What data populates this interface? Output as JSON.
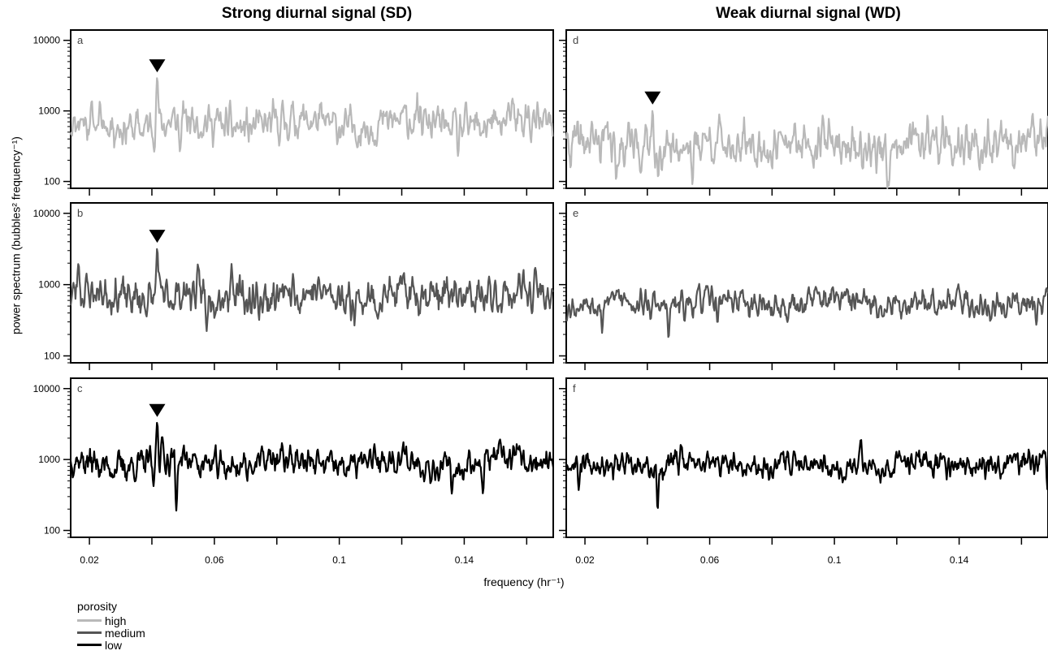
{
  "column_titles": {
    "sd": "Strong diurnal signal (SD)",
    "wd": "Weak diurnal signal (WD)"
  },
  "ylabel": "power spectrum (bubbles² frequency⁻¹)",
  "xlabel": "frequency (hr⁻¹)",
  "legend": {
    "title": "porosity",
    "items": [
      {
        "label": "high",
        "color": "#b9b9b9"
      },
      {
        "label": "medium",
        "color": "#555555"
      },
      {
        "label": "low",
        "color": "#000000"
      }
    ]
  },
  "chart_data": [
    {
      "type": "line",
      "panel_label": "a",
      "column": "sd",
      "porosity": "high",
      "scale": "log",
      "xlim": [
        0.014,
        0.1685
      ],
      "ylim": [
        80,
        14000
      ],
      "yticks": [
        100,
        1000,
        10000
      ],
      "ytick_labels": [
        "100",
        "1000",
        "10000"
      ],
      "xticks": [
        0.02,
        0.06,
        0.1,
        0.14
      ],
      "xtick_labels": [
        "0.02",
        "0.06",
        "0.1",
        "0.14"
      ],
      "baseline": 650,
      "noise_log": 0.17,
      "seed": 11,
      "peaks": [
        [
          0.0417,
          3000
        ]
      ],
      "dips": [
        [
          0.138,
          230
        ],
        [
          0.049,
          260
        ]
      ],
      "marker_x": 0.0417,
      "color": "#b9b9b9"
    },
    {
      "type": "line",
      "panel_label": "b",
      "column": "sd",
      "porosity": "medium",
      "scale": "log",
      "xlim": [
        0.014,
        0.1685
      ],
      "ylim": [
        80,
        14000
      ],
      "yticks": [
        100,
        1000,
        10000
      ],
      "ytick_labels": [
        "100",
        "1000",
        "10000"
      ],
      "xticks": [
        0.02,
        0.06,
        0.1,
        0.14
      ],
      "xtick_labels": [
        "0.02",
        "0.06",
        "0.1",
        "0.14"
      ],
      "baseline": 700,
      "noise_log": 0.17,
      "seed": 23,
      "peaks": [
        [
          0.0417,
          3300
        ],
        [
          0.0165,
          2000
        ],
        [
          0.0655,
          1950
        ]
      ],
      "dips": [
        [
          0.0575,
          220
        ]
      ],
      "marker_x": 0.0417,
      "color": "#555555"
    },
    {
      "type": "line",
      "panel_label": "c",
      "column": "sd",
      "porosity": "low",
      "scale": "log",
      "xlim": [
        0.014,
        0.1685
      ],
      "ylim": [
        80,
        14000
      ],
      "yticks": [
        100,
        1000,
        10000
      ],
      "ytick_labels": [
        "100",
        "1000",
        "10000"
      ],
      "xticks": [
        0.02,
        0.06,
        0.1,
        0.14
      ],
      "xtick_labels": [
        "0.02",
        "0.06",
        "0.1",
        "0.14"
      ],
      "baseline": 900,
      "noise_log": 0.13,
      "seed": 37,
      "peaks": [
        [
          0.0417,
          3400
        ],
        [
          0.0433,
          2100
        ]
      ],
      "dips": [
        [
          0.0478,
          190
        ],
        [
          0.0405,
          420
        ],
        [
          0.136,
          330
        ],
        [
          0.146,
          330
        ]
      ],
      "marker_x": 0.0417,
      "color": "#000000"
    },
    {
      "type": "line",
      "panel_label": "d",
      "column": "wd",
      "porosity": "high",
      "scale": "log",
      "xlim": [
        0.014,
        0.1685
      ],
      "ylim": [
        80,
        14000
      ],
      "yticks": [
        100,
        1000,
        10000
      ],
      "ytick_labels": [
        "100",
        "1000",
        "10000"
      ],
      "xticks": [
        0.02,
        0.06,
        0.1,
        0.14
      ],
      "xtick_labels": [
        "0.02",
        "0.06",
        "0.1",
        "0.14"
      ],
      "baseline": 330,
      "noise_log": 0.19,
      "seed": 41,
      "peaks": [
        [
          0.0417,
          1050
        ],
        [
          0.034,
          700
        ]
      ],
      "dips": [
        [
          0.03,
          100
        ],
        [
          0.0435,
          110
        ],
        [
          0.0545,
          90
        ],
        [
          0.117,
          75
        ],
        [
          0.1175,
          85
        ]
      ],
      "marker_x": 0.0417,
      "color": "#b9b9b9"
    },
    {
      "type": "line",
      "panel_label": "e",
      "column": "wd",
      "porosity": "medium",
      "scale": "log",
      "xlim": [
        0.014,
        0.1685
      ],
      "ylim": [
        80,
        14000
      ],
      "yticks": [
        100,
        1000,
        10000
      ],
      "ytick_labels": [
        "100",
        "1000",
        "10000"
      ],
      "xticks": [
        0.02,
        0.06,
        0.1,
        0.14
      ],
      "xtick_labels": [
        "0.02",
        "0.06",
        "0.1",
        "0.14"
      ],
      "baseline": 560,
      "noise_log": 0.12,
      "seed": 53,
      "peaks": [],
      "dips": [
        [
          0.0255,
          210
        ],
        [
          0.0468,
          175
        ],
        [
          0.0625,
          290
        ],
        [
          0.1648,
          270
        ]
      ],
      "color": "#555555"
    },
    {
      "type": "line",
      "panel_label": "f",
      "column": "wd",
      "porosity": "low",
      "scale": "log",
      "xlim": [
        0.014,
        0.1685
      ],
      "ylim": [
        80,
        14000
      ],
      "yticks": [
        100,
        1000,
        10000
      ],
      "ytick_labels": [
        "100",
        "1000",
        "10000"
      ],
      "xticks": [
        0.02,
        0.06,
        0.1,
        0.14
      ],
      "xtick_labels": [
        "0.02",
        "0.06",
        "0.1",
        "0.14"
      ],
      "baseline": 850,
      "noise_log": 0.11,
      "seed": 67,
      "peaks": [
        [
          0.1085,
          1950
        ]
      ],
      "dips": [
        [
          0.0433,
          190
        ],
        [
          0.018,
          370
        ],
        [
          0.1683,
          380
        ]
      ],
      "color": "#000000"
    }
  ]
}
